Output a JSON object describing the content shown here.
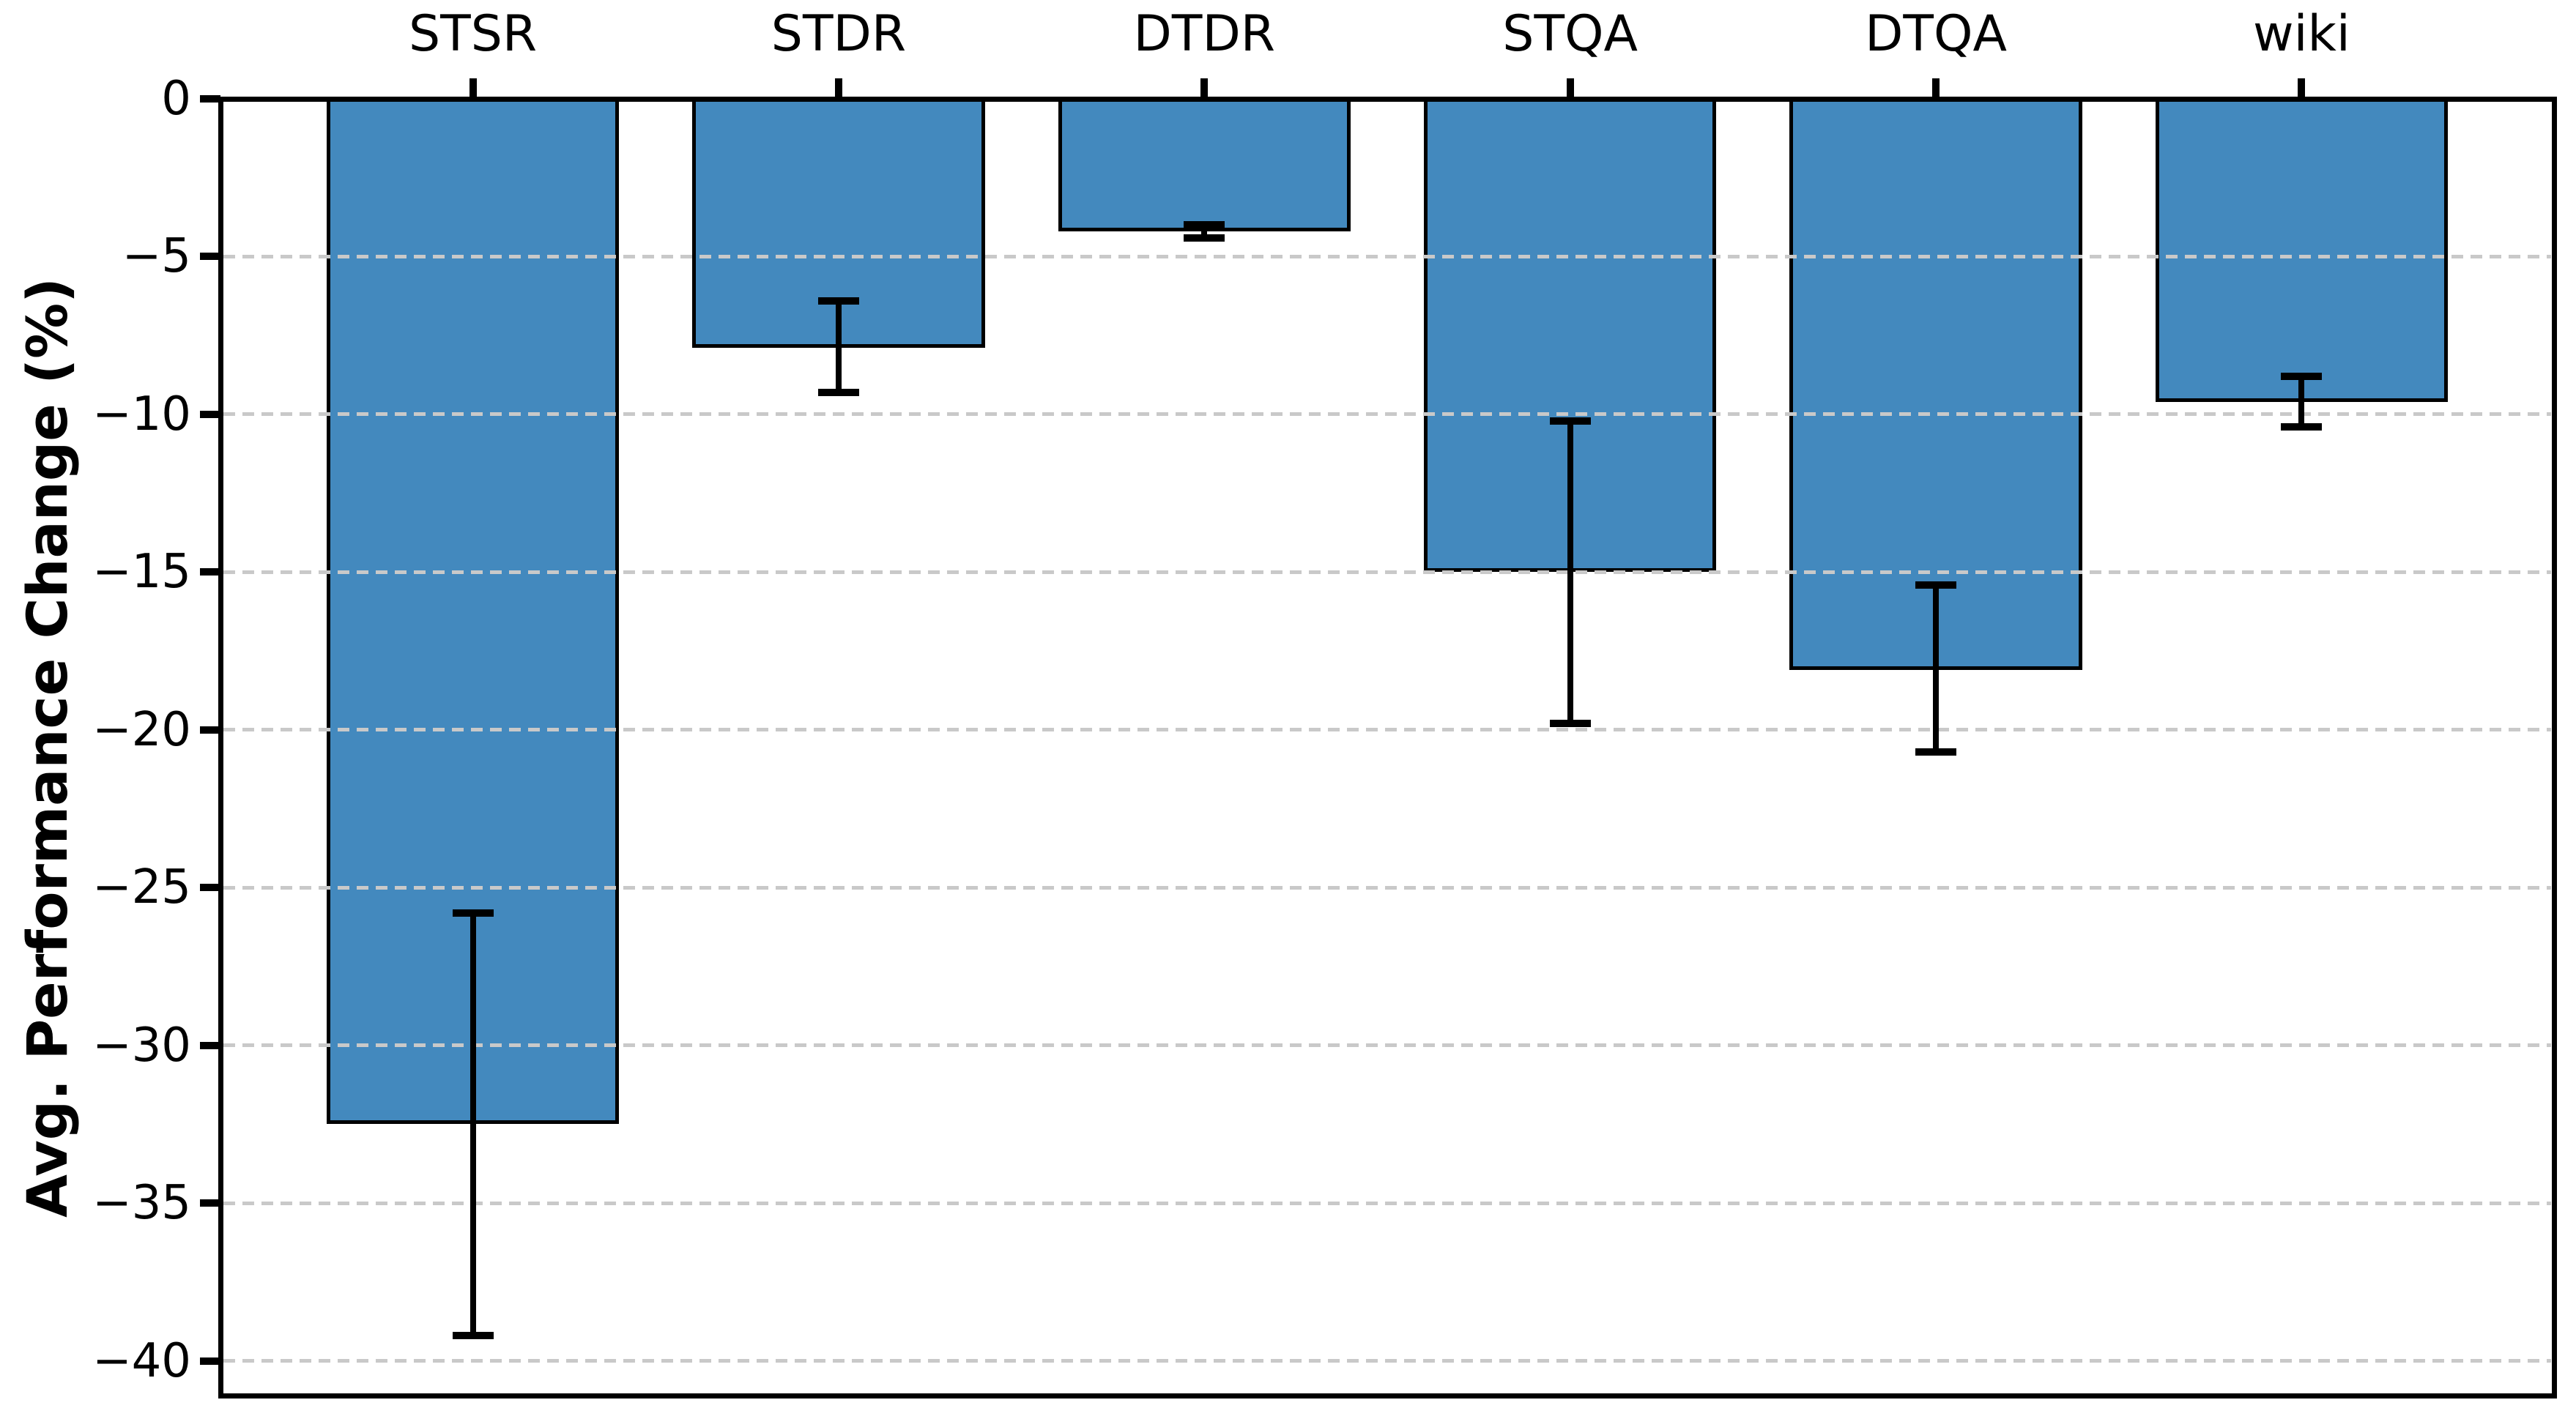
{
  "chart_data": {
    "type": "bar",
    "title": "",
    "xlabel": "",
    "ylabel": "Avg. Performance Change (%)",
    "categories": [
      "STSR",
      "STDR",
      "DTDR",
      "STQA",
      "DTQA",
      "wiki"
    ],
    "values": [
      -32.5,
      -7.9,
      -4.2,
      -15.0,
      -18.1,
      -9.6
    ],
    "error_low": [
      -39.2,
      -9.3,
      -4.4,
      -19.8,
      -20.7,
      -10.4
    ],
    "error_high": [
      -25.8,
      -6.4,
      -4.0,
      -10.2,
      -15.4,
      -8.8
    ],
    "yticks": [
      0,
      -5,
      -10,
      -15,
      -20,
      -25,
      -30,
      -35,
      -40
    ],
    "ylim": [
      -41.1,
      0
    ],
    "x_tick_side": "top",
    "grid": "horizontal-dashed",
    "legend": "none",
    "bar_color": "#4389be",
    "bar_edge_color": "#000000",
    "error_color": "#000000",
    "grid_color": "#c9c9c9",
    "axis_color": "#000000",
    "background_color": "#ffffff"
  }
}
